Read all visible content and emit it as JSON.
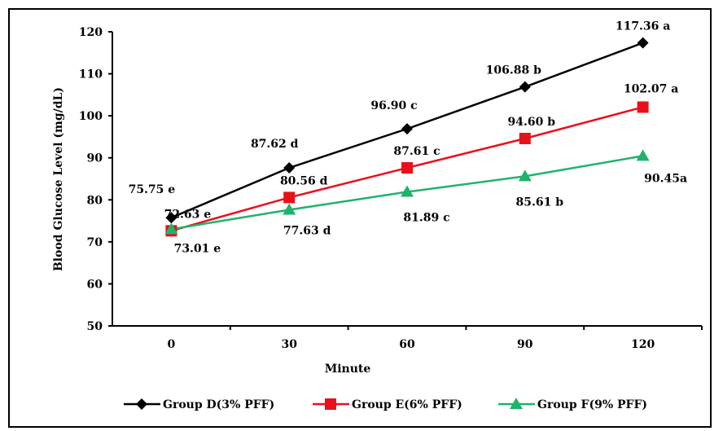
{
  "chart_data": {
    "type": "line",
    "title": "",
    "xlabel": "Minute",
    "ylabel": "Blood Glucose Level (mg/dL)",
    "categories": [
      "0",
      "30",
      "60",
      "90",
      "120"
    ],
    "x": [
      0,
      30,
      60,
      90,
      120
    ],
    "ylim": [
      50,
      120
    ],
    "yticks": [
      "50",
      "60",
      "70",
      "80",
      "90",
      "100",
      "110",
      "120"
    ],
    "grid": false,
    "legend_position": "bottom",
    "series": [
      {
        "name": "Group D(3% PFF)",
        "color": "#000000",
        "marker": "diamond",
        "values": [
          75.75,
          87.62,
          96.9,
          106.88,
          117.36
        ],
        "labels": [
          "75.75 e",
          "87.62 d",
          "96.90 c",
          "106.88 b",
          "117.36 a"
        ]
      },
      {
        "name": "Group E(6% PFF)",
        "color": "#e8111a",
        "marker": "square",
        "values": [
          72.63,
          80.56,
          87.61,
          94.6,
          102.07
        ],
        "labels": [
          "72.63 e",
          "80.56 d",
          "87.61 c",
          "94.60 b",
          "102.07 a"
        ]
      },
      {
        "name": "Group F(9% PFF)",
        "color": "#1fb36a",
        "marker": "triangle",
        "values": [
          73.01,
          77.63,
          81.89,
          85.61,
          90.45
        ],
        "labels": [
          "73.01 e",
          "77.63 d",
          "81.89 c",
          "85.61 b",
          "90.45a"
        ]
      }
    ]
  }
}
